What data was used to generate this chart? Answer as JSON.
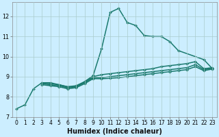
{
  "xlabel": "Humidex (Indice chaleur)",
  "bg_color": "#cceeff",
  "line_color": "#1a7a6e",
  "xlim": [
    -0.5,
    23.5
  ],
  "ylim": [
    7.0,
    12.7
  ],
  "yticks": [
    7,
    8,
    9,
    10,
    11,
    12
  ],
  "xticks": [
    0,
    1,
    2,
    3,
    4,
    5,
    6,
    7,
    8,
    9,
    10,
    11,
    12,
    13,
    14,
    15,
    16,
    17,
    18,
    19,
    20,
    21,
    22,
    23
  ],
  "lines": [
    {
      "x": [
        0,
        1,
        2,
        3,
        4,
        5,
        6,
        7,
        8,
        9,
        10,
        11,
        12,
        13,
        14,
        15,
        16,
        17,
        18,
        19,
        22,
        23
      ],
      "y": [
        7.4,
        7.6,
        8.4,
        8.7,
        8.7,
        8.6,
        8.5,
        8.5,
        8.75,
        9.05,
        10.4,
        12.2,
        12.4,
        11.7,
        11.55,
        11.05,
        11.0,
        11.0,
        10.75,
        10.3,
        9.85,
        9.4
      ],
      "lw": 1.1
    },
    {
      "x": [
        3,
        4,
        5,
        6,
        7,
        8,
        9,
        10,
        11,
        12,
        13,
        14,
        15,
        16,
        17,
        18,
        19,
        20,
        21,
        22,
        23
      ],
      "y": [
        8.7,
        8.65,
        8.6,
        8.5,
        8.55,
        8.75,
        9.0,
        9.1,
        9.15,
        9.2,
        9.25,
        9.3,
        9.35,
        9.4,
        9.5,
        9.55,
        9.6,
        9.65,
        9.75,
        9.4,
        9.45
      ],
      "lw": 1.1
    },
    {
      "x": [
        3,
        4,
        5,
        6,
        7,
        8,
        9,
        10,
        11,
        12,
        13,
        14,
        15,
        16,
        17,
        18,
        19,
        20,
        21,
        22,
        23
      ],
      "y": [
        8.65,
        8.6,
        8.55,
        8.45,
        8.5,
        8.7,
        8.95,
        8.95,
        9.0,
        9.05,
        9.1,
        9.15,
        9.2,
        9.25,
        9.3,
        9.35,
        9.4,
        9.45,
        9.6,
        9.35,
        9.42
      ],
      "lw": 1.1
    },
    {
      "x": [
        3,
        4,
        5,
        6,
        7,
        8,
        9,
        10,
        11,
        12,
        13,
        14,
        15,
        16,
        17,
        18,
        19,
        20,
        21,
        22,
        23
      ],
      "y": [
        8.6,
        8.55,
        8.5,
        8.4,
        8.45,
        8.65,
        8.9,
        8.9,
        8.92,
        8.95,
        9.0,
        9.05,
        9.1,
        9.15,
        9.2,
        9.25,
        9.3,
        9.35,
        9.5,
        9.3,
        9.38
      ],
      "lw": 1.1
    }
  ],
  "marker": "D",
  "markersize": 2.0,
  "grid_color": "#aacccc",
  "tick_fontsize": 5.5,
  "xlabel_fontsize": 7.0
}
